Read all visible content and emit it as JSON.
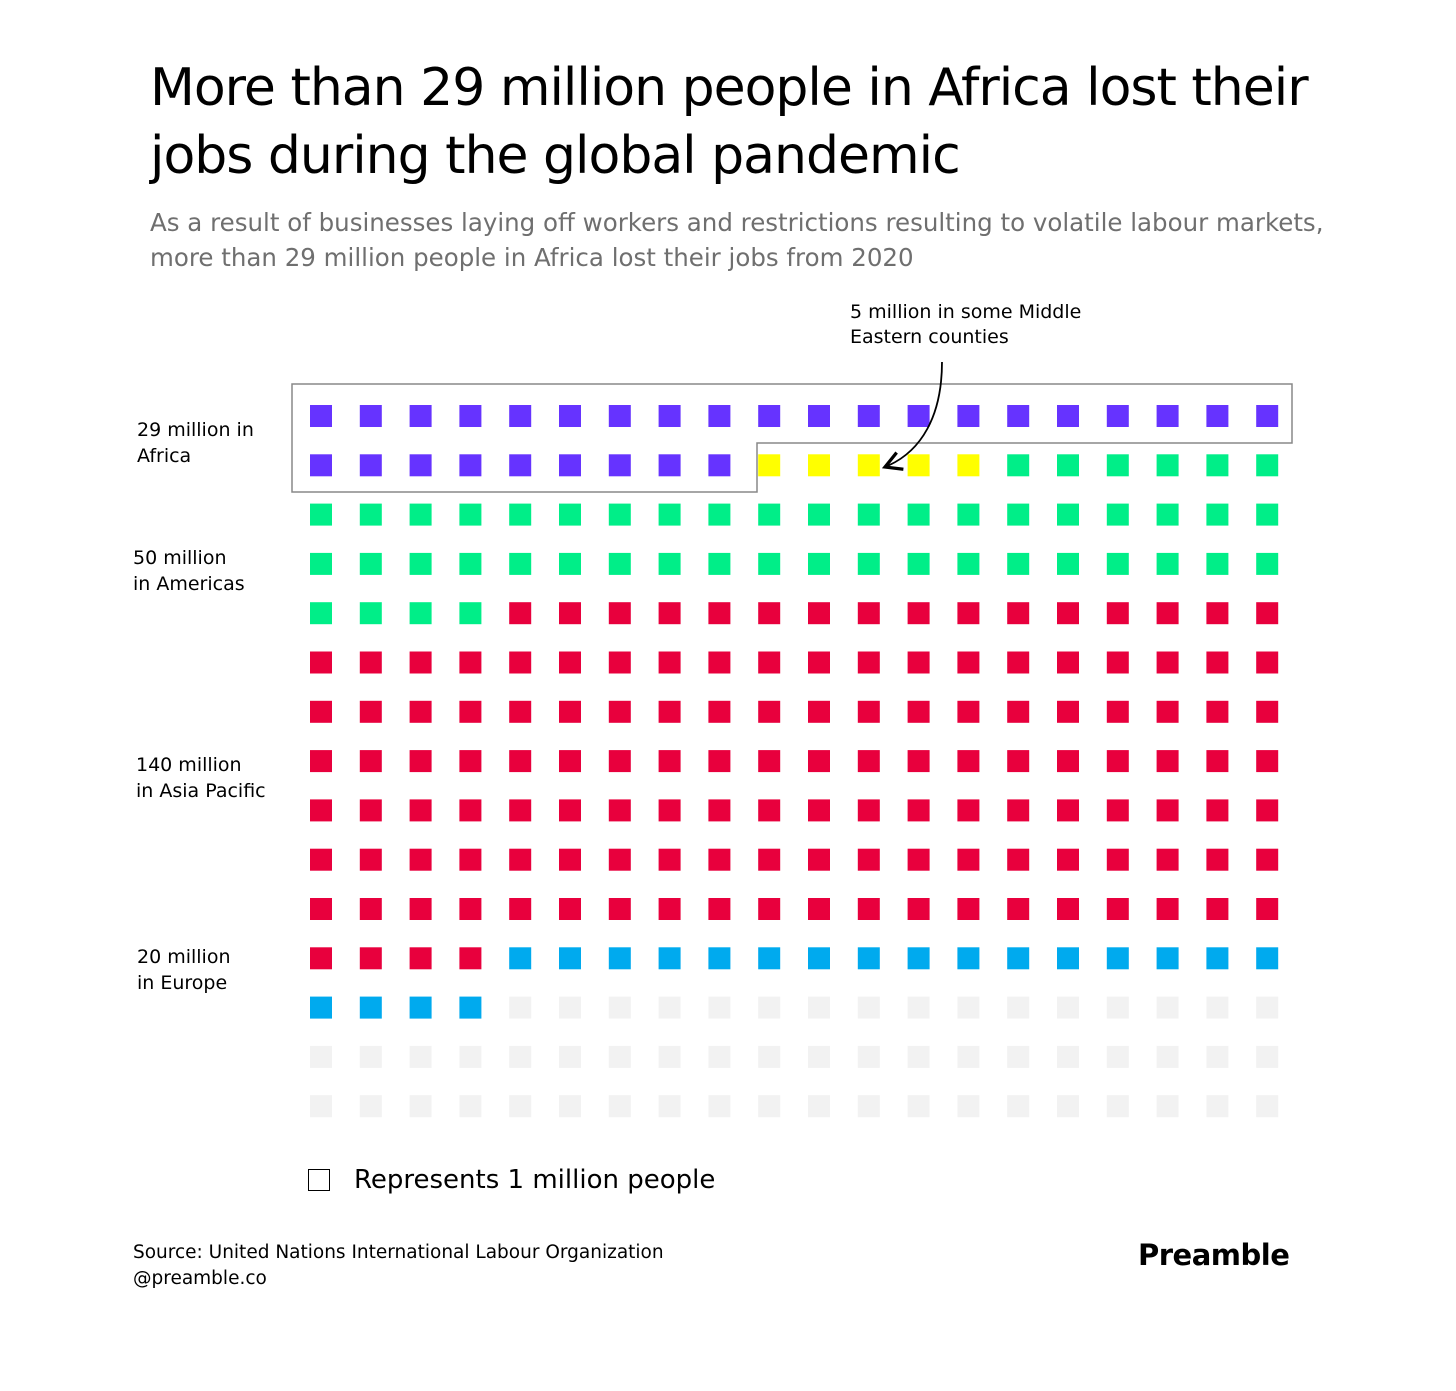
{
  "header": {
    "title": "More than 29 million people in Africa lost their jobs during the global pandemic",
    "subtitle": "As a result of businesses laying off workers and restrictions resulting to volatile labour markets, more than 29 million people in Africa lost their jobs from 2020"
  },
  "annotation": {
    "line1": "5 million in some Middle",
    "line2": "Eastern counties"
  },
  "labels": {
    "africa_line1": "29 million in",
    "africa_line2": "Africa",
    "americas_line1": "50 million",
    "americas_line2": "in Americas",
    "asia_line1": "140 million",
    "asia_line2": "in Asia Pacific",
    "europe_line1": "20 million",
    "europe_line2": "in Europe"
  },
  "legend": {
    "text": "Represents 1 million people"
  },
  "footer": {
    "source": "Source: United Nations International Labour Organization",
    "handle": "@preamble.co",
    "brand": "Preamble"
  },
  "chart_data": {
    "type": "waffle",
    "units_per_square": 1,
    "grid": {
      "columns": 20,
      "rows": 15
    },
    "series": [
      {
        "name": "Africa",
        "value": 29,
        "color": "#6633ff"
      },
      {
        "name": "Middle East",
        "value": 5,
        "color": "#ffff00"
      },
      {
        "name": "Americas",
        "value": 50,
        "color": "#00ee88"
      },
      {
        "name": "Asia Pacific",
        "value": 140,
        "color": "#e8003d"
      },
      {
        "name": "Europe",
        "value": 20,
        "color": "#00aaee"
      }
    ],
    "empty_color": "#f2f2f2"
  }
}
